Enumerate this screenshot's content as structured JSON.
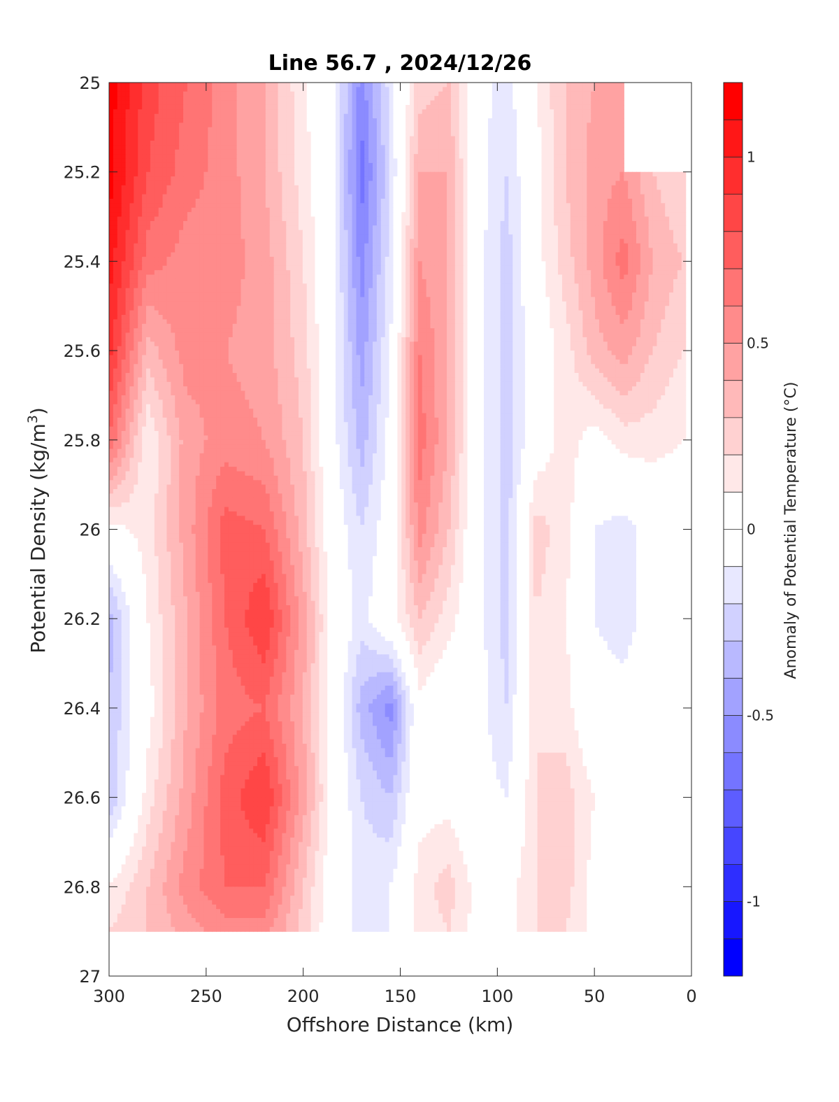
{
  "chart_data": {
    "type": "heatmap",
    "title": "Line 56.7 , 2024/12/26",
    "xlabel": "Offshore Distance (km)",
    "ylabel": "Potential Density (kg/m",
    "ylabel_sup": "3",
    "ylabel_close": ")",
    "xlim": [
      300,
      0
    ],
    "ylim": [
      25,
      27
    ],
    "y_reversed": true,
    "x_ticks": [
      "300",
      "250",
      "200",
      "150",
      "100",
      "50",
      "0"
    ],
    "x_tick_values": [
      300,
      250,
      200,
      150,
      100,
      50,
      0
    ],
    "y_ticks": [
      "25",
      "25.2",
      "25.4",
      "25.6",
      "25.8",
      "26",
      "26.2",
      "26.4",
      "26.6",
      "26.8",
      "27"
    ],
    "y_tick_values": [
      25,
      25.2,
      25.4,
      25.6,
      25.8,
      26,
      26.2,
      26.4,
      26.6,
      26.8,
      27
    ],
    "colorbar": {
      "label": "Anomaly of Potential Temperature (°C)",
      "range": [
        -1.2,
        1.2
      ],
      "step": 0.1,
      "ticks": [
        "1",
        "0.5",
        "0",
        "-0.5",
        "-1"
      ],
      "tick_values": [
        1,
        0.5,
        0,
        -0.5,
        -1
      ],
      "min_color": "#0000ff",
      "max_color": "#ff0000",
      "zero_color": "#ffffff"
    },
    "data_max_density": 26.9,
    "grid": false,
    "field": {
      "x": [
        300,
        280,
        260,
        240,
        220,
        200,
        185,
        170,
        155,
        140,
        125,
        110,
        95,
        80,
        65,
        50,
        35,
        20,
        5
      ],
      "y": [
        25.0,
        25.2,
        25.4,
        25.6,
        25.8,
        26.0,
        26.2,
        26.4,
        26.6,
        26.8,
        26.9
      ],
      "z": [
        [
          1.15,
          0.85,
          0.7,
          0.55,
          0.4,
          0.12,
          -0.05,
          -0.55,
          -0.15,
          0.25,
          0.3,
          -0.05,
          -0.15,
          0.1,
          0.3,
          0.4,
          0.45,
          null,
          null
        ],
        [
          1.15,
          0.8,
          0.65,
          0.55,
          0.4,
          0.15,
          -0.05,
          -0.65,
          -0.2,
          0.4,
          0.4,
          -0.05,
          -0.2,
          0.05,
          0.3,
          0.45,
          0.5,
          0.3,
          0.2
        ],
        [
          1.05,
          0.65,
          0.55,
          0.55,
          0.45,
          0.2,
          -0.05,
          -0.55,
          -0.15,
          0.5,
          0.4,
          -0.05,
          -0.25,
          0.05,
          0.25,
          0.45,
          0.65,
          0.4,
          0.3
        ],
        [
          0.95,
          0.35,
          0.55,
          0.5,
          0.45,
          0.25,
          -0.05,
          -0.45,
          -0.1,
          0.6,
          0.4,
          -0.05,
          -0.25,
          0.0,
          0.15,
          0.35,
          0.45,
          0.3,
          0.2
        ],
        [
          0.7,
          0.1,
          0.45,
          0.55,
          0.5,
          0.3,
          -0.05,
          -0.35,
          -0.05,
          0.65,
          0.4,
          -0.05,
          -0.25,
          0.0,
          0.15,
          0.05,
          0.15,
          0.15,
          0.1
        ],
        [
          0.05,
          0.15,
          0.45,
          0.75,
          0.7,
          0.35,
          0.0,
          -0.2,
          -0.02,
          0.55,
          0.3,
          -0.05,
          -0.25,
          0.25,
          0.15,
          -0.1,
          -0.15,
          -0.05,
          0.0
        ],
        [
          -0.35,
          0.1,
          0.4,
          0.7,
          0.9,
          0.45,
          0.05,
          -0.15,
          0.05,
          0.3,
          0.15,
          -0.05,
          -0.25,
          0.2,
          0.1,
          -0.1,
          -0.15,
          -0.05,
          0.0
        ],
        [
          -0.3,
          0.05,
          0.4,
          0.65,
          0.7,
          0.4,
          0.05,
          -0.35,
          -0.55,
          0.05,
          -0.05,
          -0.05,
          -0.2,
          0.2,
          0.15,
          -0.05,
          -0.05,
          0.0,
          0.0
        ],
        [
          -0.3,
          0.15,
          0.45,
          0.75,
          0.9,
          0.45,
          0.05,
          -0.2,
          -0.3,
          0.05,
          0.05,
          -0.05,
          -0.1,
          0.2,
          0.25,
          0.1,
          0.0,
          0.0,
          0.0
        ],
        [
          0.1,
          0.3,
          0.55,
          0.7,
          0.7,
          0.3,
          0.0,
          -0.15,
          -0.1,
          0.15,
          0.25,
          0.05,
          0.05,
          0.2,
          0.25,
          0.05,
          0.0,
          0.0,
          0.0
        ],
        [
          0.2,
          0.3,
          0.45,
          0.55,
          0.55,
          0.25,
          0.0,
          -0.15,
          -0.1,
          0.15,
          0.2,
          0.05,
          0.05,
          0.2,
          0.2,
          0.05,
          0.0,
          0.0,
          0.0
        ]
      ]
    }
  }
}
